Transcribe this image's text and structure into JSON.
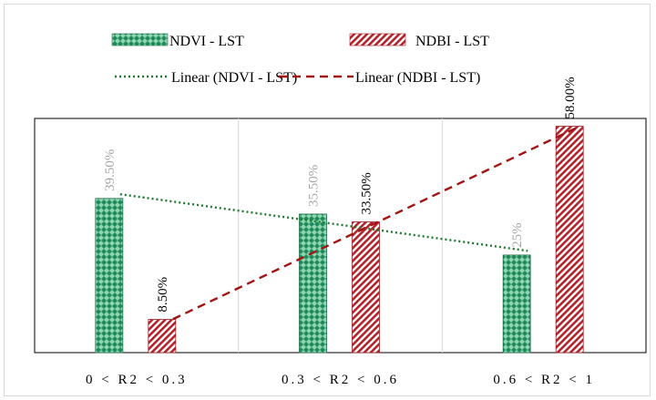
{
  "chart_data": {
    "type": "bar",
    "title": "",
    "xlabel": "",
    "ylabel": "",
    "ylim": [
      0,
      60
    ],
    "grid": false,
    "legend_position": "top",
    "categories": [
      "0 < R2 < 0.3",
      "0.3 < R2 < 0.6",
      "0.6 < R2 < 1"
    ],
    "series": [
      {
        "name": "NDVI - LST",
        "values": [
          39.5,
          35.5,
          25
        ],
        "labels": [
          "39.50%",
          "35.50%",
          "25%"
        ],
        "color": "#1f8a5b",
        "pattern": "green-diamond"
      },
      {
        "name": "NDBI - LST",
        "values": [
          8.5,
          33.5,
          58.0
        ],
        "labels": [
          "8.50%",
          "33.50%",
          "58.00%"
        ],
        "color": "#b3232b",
        "pattern": "red-diagonal"
      }
    ],
    "trendlines": [
      {
        "name": "Linear (NDVI - LST)",
        "series_index": 0,
        "style": "dotted",
        "color": "#1e7a2e"
      },
      {
        "name": "Linear (NDBI - LST)",
        "series_index": 1,
        "style": "dashed",
        "color": "#a31515"
      }
    ],
    "label_colors": {
      "ndvi": "#a6a6a6",
      "ndbi": "#000000"
    }
  }
}
